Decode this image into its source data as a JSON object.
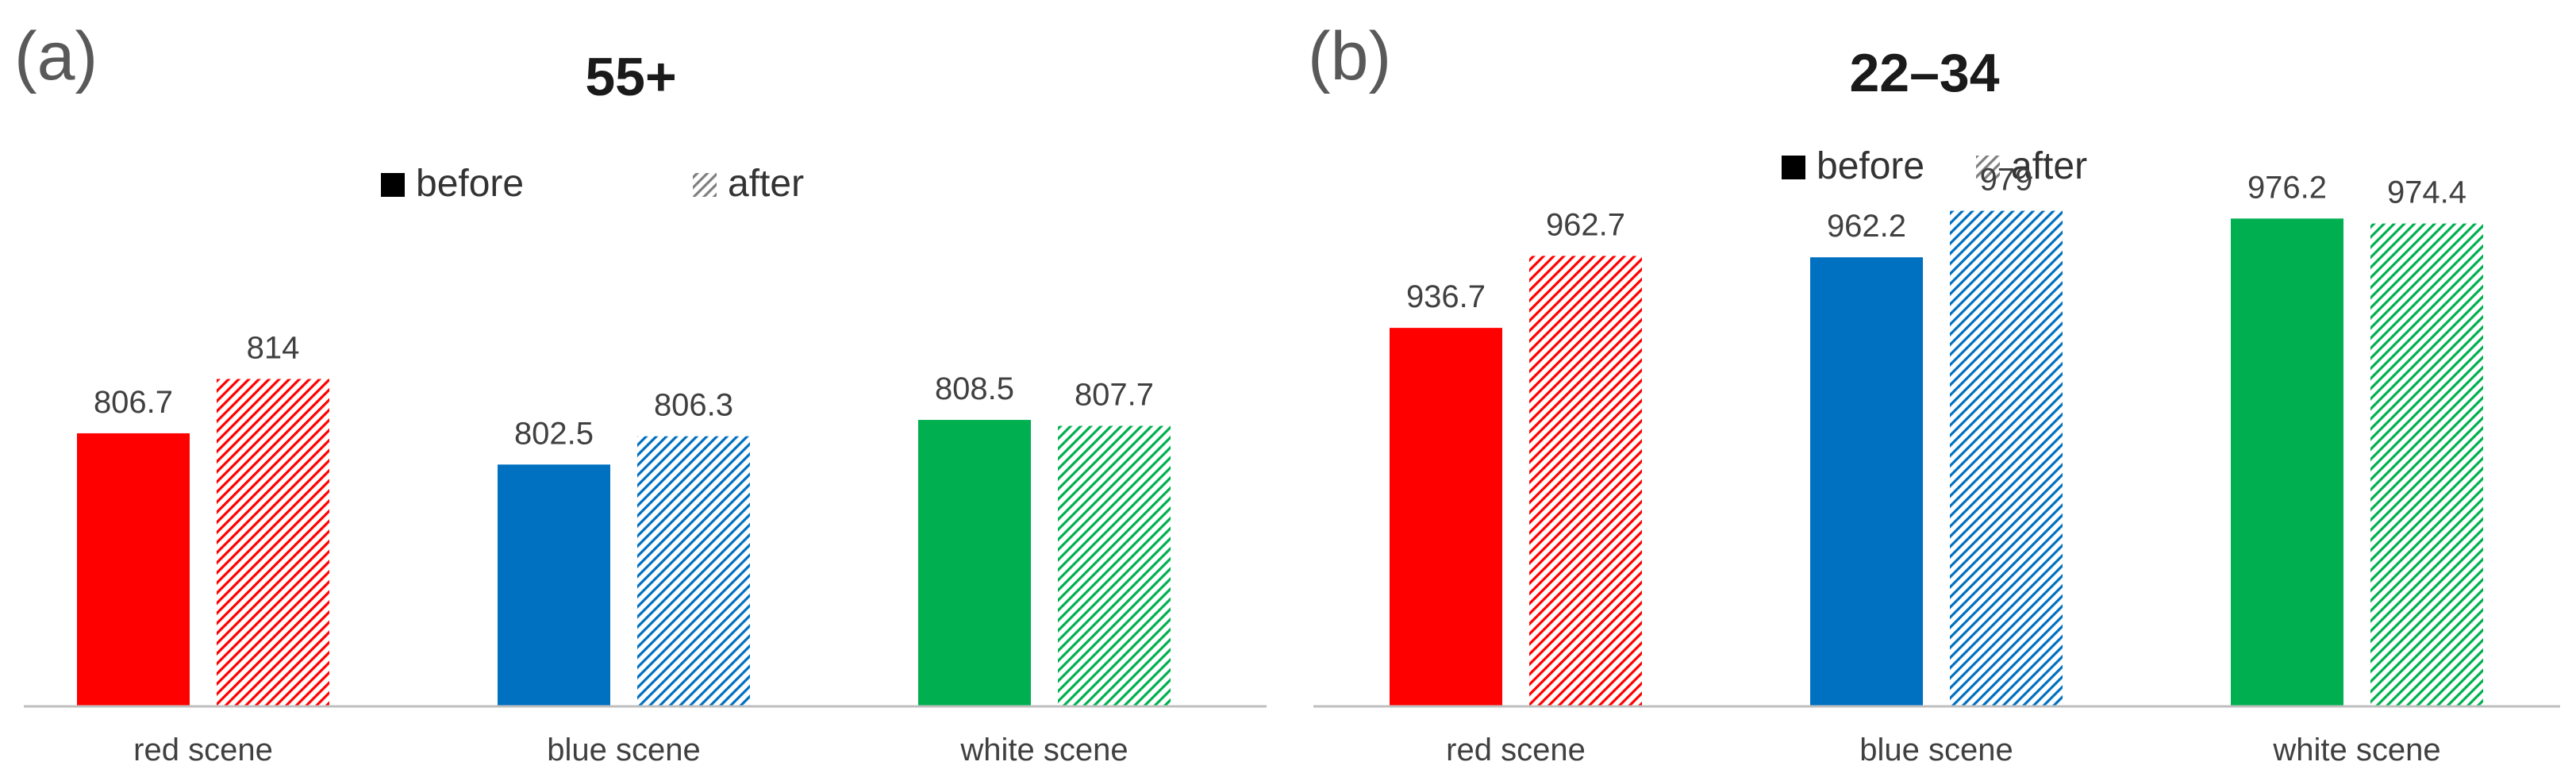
{
  "panels": [
    {
      "panel_label": "(a)",
      "legend": {
        "before": "before",
        "after": "after"
      },
      "chart_data": {
        "type": "bar",
        "title": "55+",
        "categories": [
          "red scene",
          "blue scene",
          "white scene"
        ],
        "category_colors": [
          "#ff0000",
          "#0070c0",
          "#00b050"
        ],
        "series": [
          {
            "name": "before",
            "values": [
              806.7,
              802.5,
              808.5
            ],
            "labels": [
              "806.7",
              "802.5",
              "808.5"
            ]
          },
          {
            "name": "after",
            "values": [
              814,
              806.3,
              807.7
            ],
            "labels": [
              "814",
              "806.3",
              "807.7"
            ]
          }
        ],
        "ylim": [
          770,
          850
        ],
        "grid": false,
        "legend_position": "top"
      }
    },
    {
      "panel_label": "(b)",
      "legend": {
        "before": "before",
        "after": "after"
      },
      "chart_data": {
        "type": "bar",
        "title": "22–34",
        "categories": [
          "red scene",
          "blue scene",
          "white scene"
        ],
        "category_colors": [
          "#ff0000",
          "#0070c0",
          "#00b050"
        ],
        "series": [
          {
            "name": "before",
            "values": [
              936.7,
              962.2,
              976.2
            ],
            "labels": [
              "936.7",
              "962.2",
              "976.2"
            ]
          },
          {
            "name": "after",
            "values": [
              962.7,
              979,
              974.4
            ],
            "labels": [
              "962.7",
              "979",
              "974.4"
            ]
          }
        ],
        "ylim": [
          800,
          1015
        ],
        "grid": false,
        "legend_position": "top"
      }
    }
  ]
}
